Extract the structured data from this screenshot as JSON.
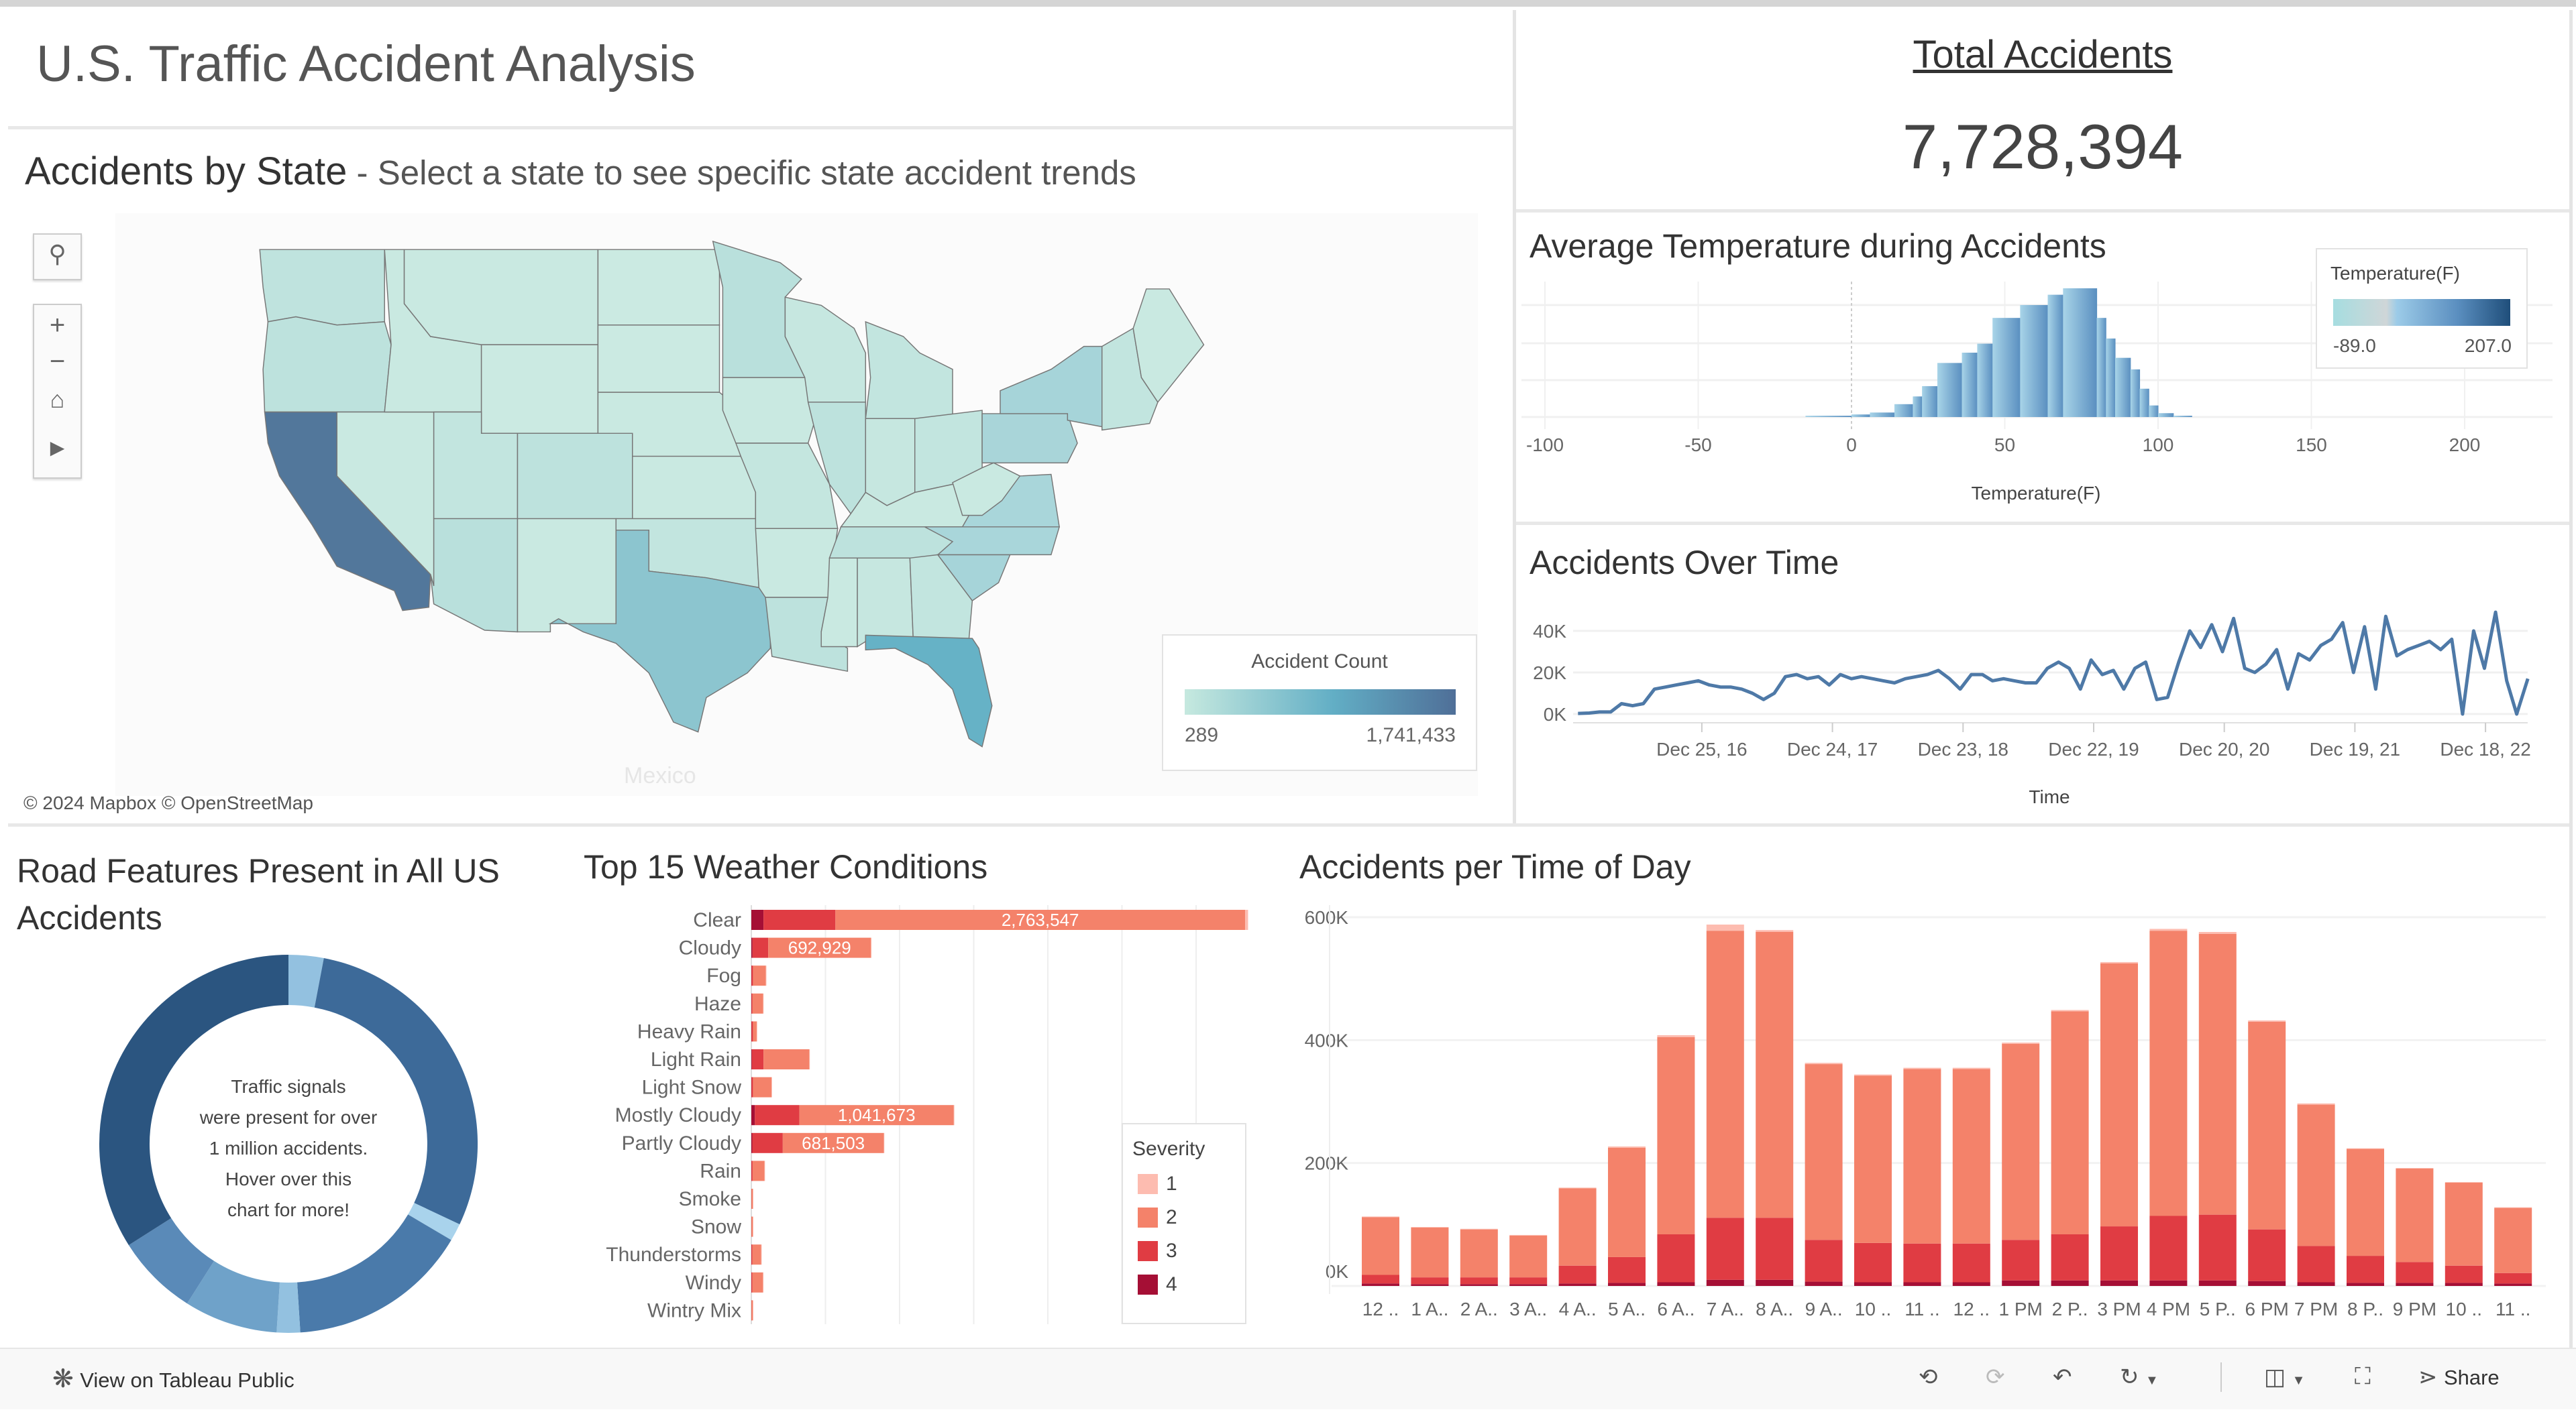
{
  "dashboard": {
    "title": "U.S. Traffic Accident Analysis",
    "total": {
      "label": "Total Accidents",
      "value": "7,728,394"
    }
  },
  "map": {
    "title": "Accidents by State",
    "subtitle": " - Select a state to see specific state accident trends",
    "legend": {
      "title": "Accident Count",
      "min": "289",
      "max": "1,741,433",
      "colors": [
        "#c6e9df",
        "#62aec5",
        "#4f6f98"
      ]
    },
    "attribution": "© 2024 Mapbox © OpenStreetMap",
    "place_label": "Mexico",
    "controls": {
      "search_icon": "search-icon",
      "zoom_in": "+",
      "zoom_out": "−",
      "home_icon": "home-icon",
      "expand_icon": "play-icon"
    },
    "states": [
      {
        "name": "WA",
        "fill": "#bfe3de"
      },
      {
        "name": "OR",
        "fill": "#bde2dd"
      },
      {
        "name": "CA",
        "fill": "#52779b"
      },
      {
        "name": "NV",
        "fill": "#c9e9e1"
      },
      {
        "name": "ID",
        "fill": "#c9e9e1"
      },
      {
        "name": "MT",
        "fill": "#c9e9e1"
      },
      {
        "name": "WY",
        "fill": "#cbeae2"
      },
      {
        "name": "UT",
        "fill": "#c2e5df"
      },
      {
        "name": "CO",
        "fill": "#bde2dd"
      },
      {
        "name": "AZ",
        "fill": "#b9e0dc"
      },
      {
        "name": "NM",
        "fill": "#c9e9e1"
      },
      {
        "name": "ND",
        "fill": "#cbeae2"
      },
      {
        "name": "SD",
        "fill": "#cbeae2"
      },
      {
        "name": "NE",
        "fill": "#c9e9e1"
      },
      {
        "name": "KS",
        "fill": "#c9e9e1"
      },
      {
        "name": "OK",
        "fill": "#c2e5df"
      },
      {
        "name": "TX",
        "fill": "#8cc5cf"
      },
      {
        "name": "MN",
        "fill": "#b9e0dc"
      },
      {
        "name": "IA",
        "fill": "#c9e9e1"
      },
      {
        "name": "MO",
        "fill": "#c4e6df"
      },
      {
        "name": "AR",
        "fill": "#c9e9e1"
      },
      {
        "name": "LA",
        "fill": "#bde2dd"
      },
      {
        "name": "WI",
        "fill": "#c6e7e0"
      },
      {
        "name": "IL",
        "fill": "#bde2dd"
      },
      {
        "name": "MI",
        "fill": "#c2e5df"
      },
      {
        "name": "IN",
        "fill": "#c6e7e0"
      },
      {
        "name": "OH",
        "fill": "#c2e5df"
      },
      {
        "name": "KY",
        "fill": "#c9e9e1"
      },
      {
        "name": "TN",
        "fill": "#bde2dd"
      },
      {
        "name": "MS",
        "fill": "#c9e9e1"
      },
      {
        "name": "AL",
        "fill": "#c6e7e0"
      },
      {
        "name": "GA",
        "fill": "#c2e5df"
      },
      {
        "name": "FL",
        "fill": "#66b2c6"
      },
      {
        "name": "SC",
        "fill": "#a6d4d9"
      },
      {
        "name": "NC",
        "fill": "#a9d6da"
      },
      {
        "name": "VA",
        "fill": "#a9d6da"
      },
      {
        "name": "WV",
        "fill": "#c9e9e1"
      },
      {
        "name": "PA",
        "fill": "#a9d5d9"
      },
      {
        "name": "NY",
        "fill": "#a6d4d9"
      },
      {
        "name": "NE-region",
        "fill": "#c2e5df"
      },
      {
        "name": "ME",
        "fill": "#c9e9e1"
      }
    ]
  },
  "chart_data": [
    {
      "id": "temperature",
      "type": "area",
      "title": "Average Temperature during Accidents",
      "xlabel": "Temperature(F)",
      "xlim": [
        -100,
        220
      ],
      "xticks": [
        "-100",
        "-50",
        "0",
        "50",
        "100",
        "150",
        "200"
      ],
      "grid": true,
      "note_y": "relative frequency (no y-axis labels shown)",
      "bins": [
        [
          -15,
          0,
          0.01
        ],
        [
          0,
          6,
          0.02
        ],
        [
          6,
          14,
          0.035
        ],
        [
          14,
          20,
          0.1
        ],
        [
          20,
          23,
          0.16
        ],
        [
          23,
          28,
          0.24
        ],
        [
          28,
          36,
          0.42
        ],
        [
          36,
          41,
          0.5
        ],
        [
          41,
          46,
          0.57
        ],
        [
          46,
          55,
          0.77
        ],
        [
          55,
          64,
          0.87
        ],
        [
          64,
          69,
          0.95
        ],
        [
          69,
          80,
          1.0
        ],
        [
          80,
          83,
          0.77
        ],
        [
          83,
          86,
          0.61
        ],
        [
          86,
          91,
          0.46
        ],
        [
          91,
          94,
          0.37
        ],
        [
          94,
          97,
          0.22
        ],
        [
          97,
          100,
          0.09
        ],
        [
          100,
          105,
          0.03
        ],
        [
          105,
          111,
          0.01
        ]
      ],
      "legend": {
        "title": "Temperature(F)",
        "min": "-89.0",
        "max": "207.0",
        "placement": "top-right"
      },
      "colors": {
        "low": "#a8d4e8",
        "high": "#5a8fc0"
      }
    },
    {
      "id": "over-time",
      "type": "line",
      "title": "Accidents Over Time",
      "xlabel": "Time",
      "x_range": [
        "2016-01-05",
        "2023-04-09"
      ],
      "ylim": [
        0,
        50000
      ],
      "yticks": [
        {
          "v": 0,
          "label": "0K"
        },
        {
          "v": 20000,
          "label": "20K"
        },
        {
          "v": 40000,
          "label": "40K"
        }
      ],
      "xticks": [
        {
          "date": "2016-12-25",
          "label": "Dec 25, 16"
        },
        {
          "date": "2017-12-24",
          "label": "Dec 24, 17"
        },
        {
          "date": "2018-12-23",
          "label": "Dec 23, 18"
        },
        {
          "date": "2019-12-22",
          "label": "Dec 22, 19"
        },
        {
          "date": "2020-12-20",
          "label": "Dec 20, 20"
        },
        {
          "date": "2021-12-19",
          "label": "Dec 19, 21"
        },
        {
          "date": "2022-12-18",
          "label": "Dec 18, 22"
        }
      ],
      "color": "#4e79a7",
      "start_month": "2016-01",
      "monthly_values": [
        300,
        500,
        1000,
        1000,
        5000,
        4000,
        5000,
        12000,
        13000,
        14000,
        15000,
        16000,
        14000,
        13000,
        13000,
        12000,
        10000,
        7000,
        10000,
        18000,
        19000,
        17000,
        18000,
        14000,
        19000,
        17000,
        18000,
        17000,
        16000,
        15000,
        17000,
        18000,
        19000,
        21000,
        17000,
        12000,
        19000,
        19000,
        16000,
        17000,
        16000,
        15000,
        15000,
        22000,
        25000,
        22000,
        12000,
        26000,
        19000,
        21000,
        12000,
        22000,
        25000,
        7000,
        8000,
        25000,
        40000,
        32000,
        43000,
        30000,
        46000,
        22000,
        20000,
        24000,
        31000,
        12000,
        29000,
        26000,
        33000,
        36000,
        44000,
        20000,
        42000,
        12000,
        47000,
        28000,
        31000,
        33000,
        35000,
        31000,
        36000,
        0,
        40000,
        22000,
        49000,
        16000,
        0,
        17000
      ]
    },
    {
      "id": "road-features",
      "type": "pie",
      "title": "Road Features Present in All US Accidents",
      "center_text": [
        "Traffic signals",
        "were present for over",
        "1 million accidents.",
        "Hover over this",
        "chart for more!"
      ],
      "slices": [
        {
          "value": 0.03,
          "color": "#93c1e0"
        },
        {
          "value": 0.29,
          "color": "#3d6a99"
        },
        {
          "value": 0.015,
          "color": "#a9d3ec"
        },
        {
          "value": 0.155,
          "color": "#4a7aaa"
        },
        {
          "value": 0.02,
          "color": "#93c1e0"
        },
        {
          "value": 0.08,
          "color": "#6fa2c9"
        },
        {
          "value": 0.07,
          "color": "#5a8ab8"
        },
        {
          "value": 0.34,
          "color": "#2b5580"
        }
      ]
    },
    {
      "id": "weather",
      "type": "bar",
      "orientation": "horizontal",
      "stacked": true,
      "title": "Top 15 Weather Conditions",
      "xlim": [
        0,
        3500000
      ],
      "grid": true,
      "categories": [
        "Clear",
        "Cloudy",
        "Fog",
        "Haze",
        "Heavy Rain",
        "Light Rain",
        "Light Snow",
        "Mostly Cloudy",
        "Partly Cloudy",
        "Rain",
        "Smoke",
        "Snow",
        "Thunderstorms",
        "Windy",
        "Wintry Mix"
      ],
      "series": [
        {
          "name": "1",
          "color": "#fdbcb0",
          "values": [
            20000,
            3000,
            1000,
            1000,
            500,
            2000,
            1000,
            3000,
            2000,
            500,
            100,
            100,
            500,
            500,
            100
          ]
        },
        {
          "name": "2",
          "color": "#f4826a",
          "values": [
            2763547,
            692929,
            87000,
            72000,
            25000,
            309000,
            125000,
            1041673,
            681503,
            80000,
            9000,
            9000,
            60000,
            72000,
            9000
          ]
        },
        {
          "name": "3",
          "color": "#e03c43",
          "values": [
            485000,
            106000,
            10000,
            6000,
            10000,
            78000,
            10000,
            300000,
            205000,
            8000,
            1000,
            1000,
            6000,
            6000,
            1000
          ]
        },
        {
          "name": "4",
          "color": "#a50f35",
          "values": [
            82000,
            8000,
            1000,
            1000,
            1000,
            4000,
            1000,
            24000,
            7000,
            500,
            100,
            100,
            500,
            500,
            100
          ]
        }
      ],
      "data_labels": [
        {
          "category": "Clear",
          "label": "2,763,547"
        },
        {
          "category": "Cloudy",
          "label": "692,929"
        },
        {
          "category": "Mostly Cloudy",
          "label": "1,041,673"
        },
        {
          "category": "Partly Cloudy",
          "label": "681,503"
        }
      ],
      "legend": {
        "title": "Severity",
        "placement": "bottom-right"
      }
    },
    {
      "id": "time-of-day",
      "type": "bar",
      "stacked": true,
      "title": "Accidents per Time of Day",
      "ylim": [
        0,
        620000
      ],
      "yticks": [
        {
          "v": 0,
          "label": "0K"
        },
        {
          "v": 200000,
          "label": "200K"
        },
        {
          "v": 400000,
          "label": "400K"
        },
        {
          "v": 600000,
          "label": "600K"
        }
      ],
      "grid": true,
      "categories": [
        "12 ..",
        "1 A..",
        "2 A..",
        "3 A..",
        "4 A..",
        "5 A..",
        "6 A..",
        "7 A..",
        "8 A..",
        "9 A..",
        "10 ..",
        "11 ..",
        "12 ..",
        "1 PM",
        "2 P..",
        "3 PM",
        "4 PM",
        "5 P..",
        "6 PM",
        "7 PM",
        "8 P..",
        "9 PM",
        "10 ..",
        "11 .."
      ],
      "series": [
        {
          "name": "4",
          "color": "#a50f35",
          "values": [
            4000,
            3000,
            3000,
            3000,
            4000,
            5000,
            6000,
            10000,
            10000,
            7000,
            6000,
            6000,
            6000,
            9000,
            9000,
            9000,
            9000,
            9000,
            8000,
            6000,
            5000,
            5000,
            5000,
            4000
          ]
        },
        {
          "name": "3",
          "color": "#e03c43",
          "values": [
            14000,
            11000,
            11000,
            11000,
            29000,
            42000,
            78000,
            101000,
            101000,
            68000,
            64000,
            63000,
            63000,
            66000,
            75000,
            88000,
            105000,
            107000,
            84000,
            59000,
            44000,
            34000,
            28000,
            17000
          ]
        },
        {
          "name": "2",
          "color": "#f4826a",
          "values": [
            94000,
            81000,
            78000,
            68000,
            126000,
            178000,
            321000,
            467000,
            465000,
            286000,
            272000,
            284000,
            284000,
            319000,
            363000,
            428000,
            464000,
            457000,
            338000,
            230000,
            174000,
            152000,
            135000,
            106000
          ]
        },
        {
          "name": "1",
          "color": "#fdbcb0",
          "values": [
            1000,
            1000,
            1000,
            1000,
            1000,
            2000,
            3000,
            10000,
            3000,
            2000,
            2000,
            2000,
            2000,
            2000,
            2000,
            2000,
            3000,
            3000,
            2000,
            2000,
            1000,
            1000,
            1000,
            1000
          ]
        }
      ]
    }
  ],
  "toolbar": {
    "view_public": "View on Tableau Public",
    "share": "Share",
    "icons": [
      "undo-icon",
      "redo-icon",
      "revert-icon",
      "refresh-icon",
      "download-icon",
      "fullscreen-icon",
      "share-icon"
    ]
  }
}
